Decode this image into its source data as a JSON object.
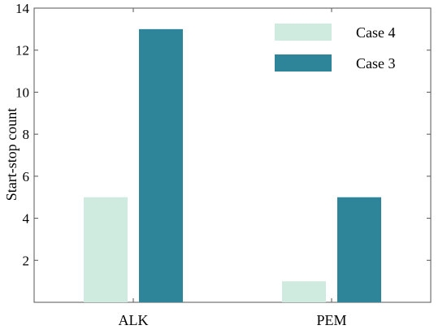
{
  "chart_data": {
    "type": "bar",
    "title": "",
    "xlabel": "",
    "ylabel": "Start-stop count",
    "ylim": [
      0,
      14
    ],
    "yticks": [
      2,
      4,
      6,
      8,
      10,
      12,
      14
    ],
    "grid": false,
    "legend_position": "top-right",
    "categories": [
      "ALK",
      "PEM"
    ],
    "series": [
      {
        "name": "Case 4",
        "values": [
          5,
          1
        ],
        "color": "#cfeade"
      },
      {
        "name": "Case 3",
        "values": [
          13,
          5
        ],
        "color": "#2e8599"
      }
    ]
  }
}
